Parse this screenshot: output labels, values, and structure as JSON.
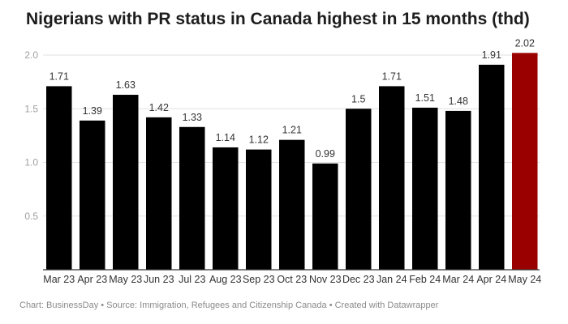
{
  "chart_data": {
    "type": "bar",
    "title": "Nigerians with PR status in Canada highest in 15 months (thd)",
    "categories": [
      "Mar 23",
      "Apr 23",
      "May 23",
      "Jun 23",
      "Jul 23",
      "Aug 23",
      "Sep 23",
      "Oct 23",
      "Nov 23",
      "Dec 23",
      "Jan 24",
      "Feb 24",
      "Mar 24",
      "Apr 24",
      "May 24"
    ],
    "values": [
      1.71,
      1.39,
      1.63,
      1.42,
      1.33,
      1.14,
      1.12,
      1.21,
      0.99,
      1.5,
      1.71,
      1.51,
      1.48,
      1.91,
      2.02
    ],
    "value_labels": [
      "1.71",
      "1.39",
      "1.63",
      "1.42",
      "1.33",
      "1.14",
      "1.12",
      "1.21",
      "0.99",
      "1.5",
      "1.71",
      "1.51",
      "1.48",
      "1.91",
      "2.02"
    ],
    "ylim": [
      0,
      2.0
    ],
    "yticks": [
      "0.5",
      "1.0",
      "1.5",
      "2.0"
    ],
    "ytick_values": [
      0.5,
      1.0,
      1.5,
      2.0
    ],
    "grid": true,
    "colors": {
      "default": "#000000",
      "highlight": "#9b0000",
      "grid": "#e2e2e2",
      "axis": "#333333"
    },
    "highlight_index": 14,
    "footer": "Chart: BusinessDay • Source: Immigration, Refugees and Citizenship Canada • Created with Datawrapper"
  }
}
